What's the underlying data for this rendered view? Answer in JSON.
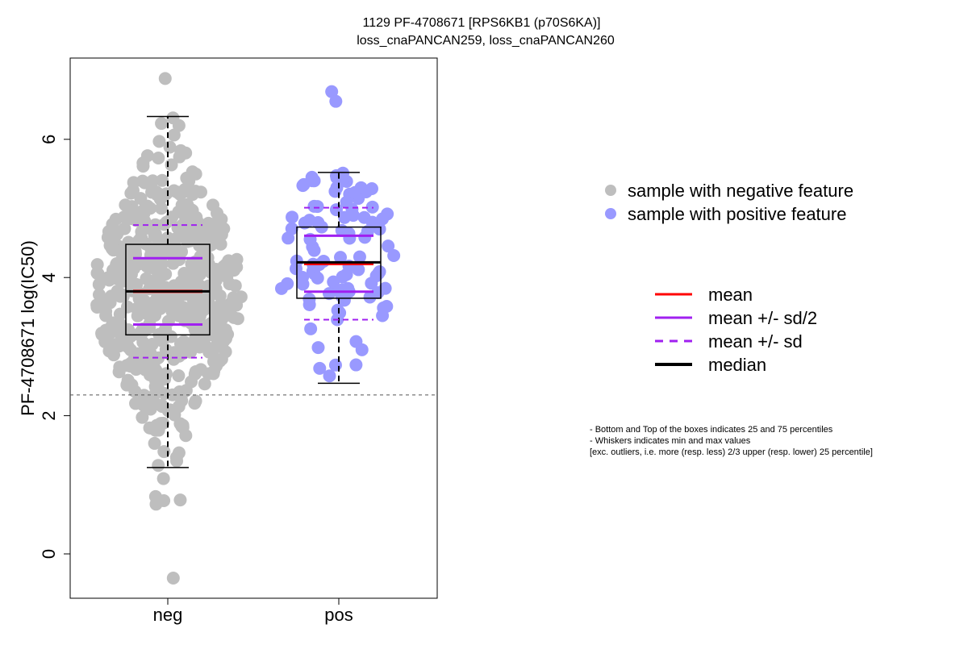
{
  "chart_data": {
    "type": "scatter",
    "title": "1129 PF-4708671 [RPS6KB1 (p70S6KA)]",
    "subtitle": "loss_cnaPANCAN259, loss_cnaPANCAN260",
    "xlabel": "",
    "ylabel": "PF-4708671 log(IC50)",
    "ylim": [
      -0.5,
      7.2
    ],
    "y_ticks": [
      0,
      2,
      4,
      6
    ],
    "categories": [
      "neg",
      "pos"
    ],
    "threshold_line": 2.3,
    "groups": [
      {
        "name": "neg",
        "color": "#BEBEBE",
        "stats": {
          "min": 1.25,
          "q1": 3.17,
          "median": 3.8,
          "q3": 4.48,
          "max": 6.33,
          "mean": 3.8,
          "sd": 0.96
        },
        "outliers": [
          6.88,
          1.09,
          0.83,
          0.78,
          0.77,
          0.72,
          -0.35
        ],
        "n": 520
      },
      {
        "name": "pos",
        "color": "#9999FF",
        "stats": {
          "min": 2.47,
          "q1": 3.7,
          "median": 4.22,
          "q3": 4.73,
          "max": 5.52,
          "mean": 4.2,
          "sd": 0.81
        },
        "outliers": [
          6.69,
          6.55
        ],
        "n": 100
      }
    ],
    "legend_points": [
      {
        "label": "sample with negative feature",
        "color": "#BEBEBE"
      },
      {
        "label": "sample with positive feature",
        "color": "#9999FF"
      }
    ],
    "legend_lines": [
      {
        "label": "mean",
        "color": "#FF0000",
        "style": "solid"
      },
      {
        "label": "mean +/- sd/2",
        "color": "#A020F0",
        "style": "solid"
      },
      {
        "label": "mean +/- sd",
        "color": "#A020F0",
        "style": "dashed"
      },
      {
        "label": "median",
        "color": "#000000",
        "style": "solid-thick"
      }
    ],
    "notes": [
      "- Bottom and Top of the boxes indicates 25 and 75 percentiles",
      "- Whiskers indicates min and max values",
      "[exc. outliers, i.e. more (resp. less) 2/3 upper (resp. lower) 25 percentile]"
    ],
    "grid": false,
    "legend_position": "right"
  }
}
